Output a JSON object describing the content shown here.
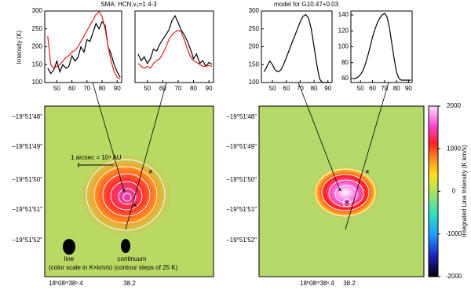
{
  "headers": [
    "SMA: HCN,v₂=1 4-3",
    "model for G10.47+0.03"
  ],
  "chart_data": [
    {
      "type": "line",
      "ylabel": "Intensity (K)",
      "x": [
        44,
        46,
        48,
        50,
        52,
        54,
        56,
        58,
        60,
        62,
        64,
        66,
        68,
        70,
        72,
        74,
        76,
        78,
        80,
        82,
        84,
        86,
        88,
        90,
        92
      ],
      "xlim": [
        42,
        93
      ],
      "xticks": [
        50,
        60,
        70,
        80,
        90
      ],
      "ylim": [
        100,
        300
      ],
      "yticks": [
        100,
        150,
        200,
        250,
        300
      ],
      "series": [
        {
          "color": "#000000",
          "values": [
            140,
            125,
            135,
            160,
            130,
            150,
            140,
            145,
            175,
            160,
            170,
            200,
            185,
            220,
            215,
            240,
            265,
            250,
            270,
            260,
            200,
            180,
            150,
            130,
            115
          ]
        },
        {
          "color": "#e02020",
          "values": [
            230,
            150,
            140,
            145,
            150,
            160,
            170,
            175,
            185,
            190,
            200,
            215,
            230,
            245,
            260,
            275,
            290,
            298,
            285,
            250,
            200,
            160,
            130,
            115,
            110
          ]
        }
      ]
    },
    {
      "type": "line",
      "x": [
        44,
        46,
        48,
        50,
        52,
        54,
        56,
        58,
        60,
        62,
        64,
        66,
        68,
        70,
        72,
        74,
        76,
        78,
        80,
        82,
        84,
        86,
        88,
        90,
        92
      ],
      "xlim": [
        42,
        93
      ],
      "xticks": [
        50,
        60,
        70,
        80,
        90
      ],
      "ylim": [
        95,
        170
      ],
      "series": [
        {
          "color": "#000000",
          "values": [
            125,
            118,
            122,
            115,
            120,
            130,
            128,
            135,
            140,
            145,
            150,
            160,
            165,
            158,
            150,
            145,
            138,
            130,
            120,
            125,
            115,
            118,
            112,
            116,
            114
          ]
        },
        {
          "color": "#e02020",
          "values": [
            115,
            112,
            110,
            112,
            110,
            115,
            118,
            120,
            125,
            132,
            140,
            145,
            148,
            150,
            148,
            140,
            130,
            122,
            118,
            116,
            114,
            112,
            112,
            113,
            112
          ]
        }
      ]
    },
    {
      "type": "line",
      "x": [
        44,
        46,
        48,
        50,
        52,
        54,
        56,
        58,
        60,
        62,
        64,
        66,
        68,
        70,
        72,
        74,
        76,
        78,
        80,
        82,
        84,
        86,
        88,
        90,
        92
      ],
      "xlim": [
        42,
        93
      ],
      "xticks": [
        50,
        60,
        70,
        80,
        90
      ],
      "ylim": [
        100,
        300
      ],
      "yticks": [
        100,
        150,
        200,
        250,
        300
      ],
      "series": [
        {
          "color": "#000000",
          "values": [
            130,
            145,
            160,
            150,
            135,
            130,
            135,
            150,
            170,
            190,
            210,
            230,
            250,
            270,
            285,
            290,
            280,
            250,
            200,
            150,
            110,
            100,
            100,
            100,
            100
          ]
        }
      ]
    },
    {
      "type": "line",
      "x": [
        44,
        46,
        48,
        50,
        52,
        54,
        56,
        58,
        60,
        62,
        64,
        66,
        68,
        70,
        72,
        74,
        76,
        78,
        80,
        82,
        84,
        86,
        88,
        90,
        92
      ],
      "xlim": [
        42,
        93
      ],
      "xticks": [
        50,
        60,
        70,
        80,
        90
      ],
      "ylim": [
        55,
        145
      ],
      "yticks": [
        60,
        80,
        100,
        120,
        140
      ],
      "series": [
        {
          "color": "#000000",
          "values": [
            60,
            60,
            62,
            65,
            70,
            78,
            88,
            100,
            112,
            122,
            130,
            136,
            140,
            142,
            138,
            125,
            105,
            85,
            68,
            60,
            58,
            58,
            58,
            58,
            58
          ]
        }
      ]
    },
    {
      "type": "colorbar",
      "ylabel": "Integrated Line Intensity (K km/s)",
      "ylim": [
        -2000,
        2000
      ],
      "yticks": [
        -2000,
        -1000,
        0,
        1000,
        2000
      ]
    }
  ],
  "maps": {
    "ytick_labels": [
      "−19°51′48″",
      "−19°51′49″",
      "−19°51′50″",
      "−19°51′51″",
      "−19°51′52″"
    ],
    "xtick_labels": [
      "18ʰ08ᵐ38ˢ.4",
      "38.2"
    ],
    "scale_label": "1 arcsec = 10⁴ AU",
    "beam_labels": [
      "line",
      "continuum"
    ],
    "note": "(color scale in K×km/s) (contour steps of 25 K)"
  }
}
